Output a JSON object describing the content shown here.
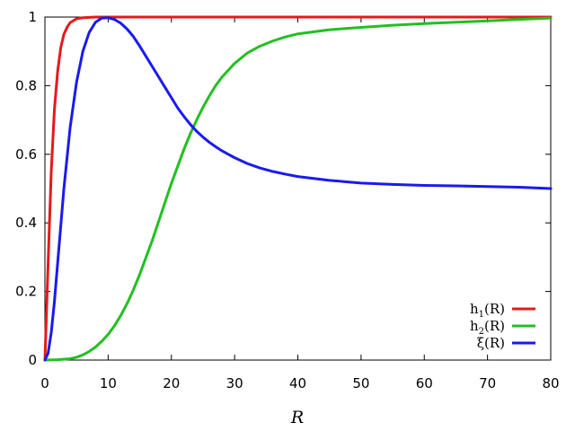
{
  "chart_data": {
    "type": "line",
    "xlabel": "R",
    "ylabel": "",
    "xlim": [
      0,
      80
    ],
    "ylim": [
      0,
      1
    ],
    "x_ticks": [
      0,
      10,
      20,
      30,
      40,
      50,
      60,
      70,
      80
    ],
    "y_ticks": [
      0,
      0.2,
      0.4,
      0.6,
      0.8,
      1
    ],
    "x_tick_labels": [
      "0",
      "10",
      "20",
      "30",
      "40",
      "50",
      "60",
      "70",
      "80"
    ],
    "y_tick_labels": [
      "0",
      "0.2",
      "0.4",
      "0.6",
      "0.8",
      "1"
    ],
    "grid": false,
    "legend_position": "bottom-right",
    "series": [
      {
        "name": "h1(R)",
        "legend_base": "h",
        "legend_sub": "1",
        "legend_tail": "(R)",
        "color": "#e41a1c",
        "x": [
          0,
          0.5,
          1,
          1.5,
          2,
          2.5,
          3,
          3.5,
          4,
          5,
          6,
          7,
          8,
          10,
          15,
          20,
          30,
          40,
          50,
          60,
          70,
          80
        ],
        "y": [
          0,
          0.28,
          0.55,
          0.73,
          0.84,
          0.91,
          0.95,
          0.97,
          0.984,
          0.995,
          0.998,
          0.999,
          1.0,
          1.0,
          1.0,
          1.0,
          1.0,
          1.0,
          1.0,
          1.0,
          1.0,
          1.0
        ]
      },
      {
        "name": "h2(R)",
        "legend_base": "h",
        "legend_sub": "2",
        "legend_tail": "(R)",
        "color": "#21c021",
        "x": [
          0,
          2,
          4,
          5,
          6,
          7,
          8,
          9,
          10,
          11,
          12,
          13,
          14,
          15,
          16,
          17,
          18,
          19,
          20,
          21,
          22,
          23,
          24,
          25,
          26,
          27,
          28,
          30,
          32,
          34,
          36,
          38,
          40,
          45,
          50,
          55,
          60,
          65,
          70,
          75,
          80
        ],
        "y": [
          0,
          0.001,
          0.004,
          0.008,
          0.015,
          0.025,
          0.038,
          0.055,
          0.075,
          0.1,
          0.13,
          0.165,
          0.205,
          0.25,
          0.3,
          0.35,
          0.405,
          0.46,
          0.515,
          0.565,
          0.615,
          0.66,
          0.7,
          0.737,
          0.77,
          0.8,
          0.825,
          0.865,
          0.895,
          0.915,
          0.93,
          0.942,
          0.951,
          0.963,
          0.97,
          0.976,
          0.981,
          0.985,
          0.989,
          0.993,
          0.997
        ]
      },
      {
        "name": "ξ(R)",
        "legend_base": "ξ",
        "legend_sub": "",
        "legend_tail": "(R)",
        "color": "#1a1aee",
        "x": [
          0,
          0.5,
          1,
          1.5,
          2,
          3,
          4,
          5,
          6,
          7,
          8,
          9,
          10,
          11,
          12,
          13,
          14,
          15,
          16,
          17,
          18,
          19,
          20,
          21,
          22,
          23,
          24,
          25,
          26,
          27,
          28,
          30,
          32,
          34,
          36,
          38,
          40,
          45,
          50,
          55,
          60,
          65,
          70,
          75,
          80
        ],
        "y": [
          0,
          0.02,
          0.08,
          0.17,
          0.28,
          0.5,
          0.68,
          0.81,
          0.9,
          0.955,
          0.985,
          0.997,
          0.998,
          0.993,
          0.982,
          0.965,
          0.943,
          0.915,
          0.885,
          0.855,
          0.825,
          0.795,
          0.765,
          0.735,
          0.71,
          0.687,
          0.667,
          0.65,
          0.635,
          0.622,
          0.61,
          0.59,
          0.573,
          0.56,
          0.55,
          0.542,
          0.535,
          0.524,
          0.516,
          0.512,
          0.509,
          0.508,
          0.506,
          0.504,
          0.5
        ]
      }
    ]
  }
}
